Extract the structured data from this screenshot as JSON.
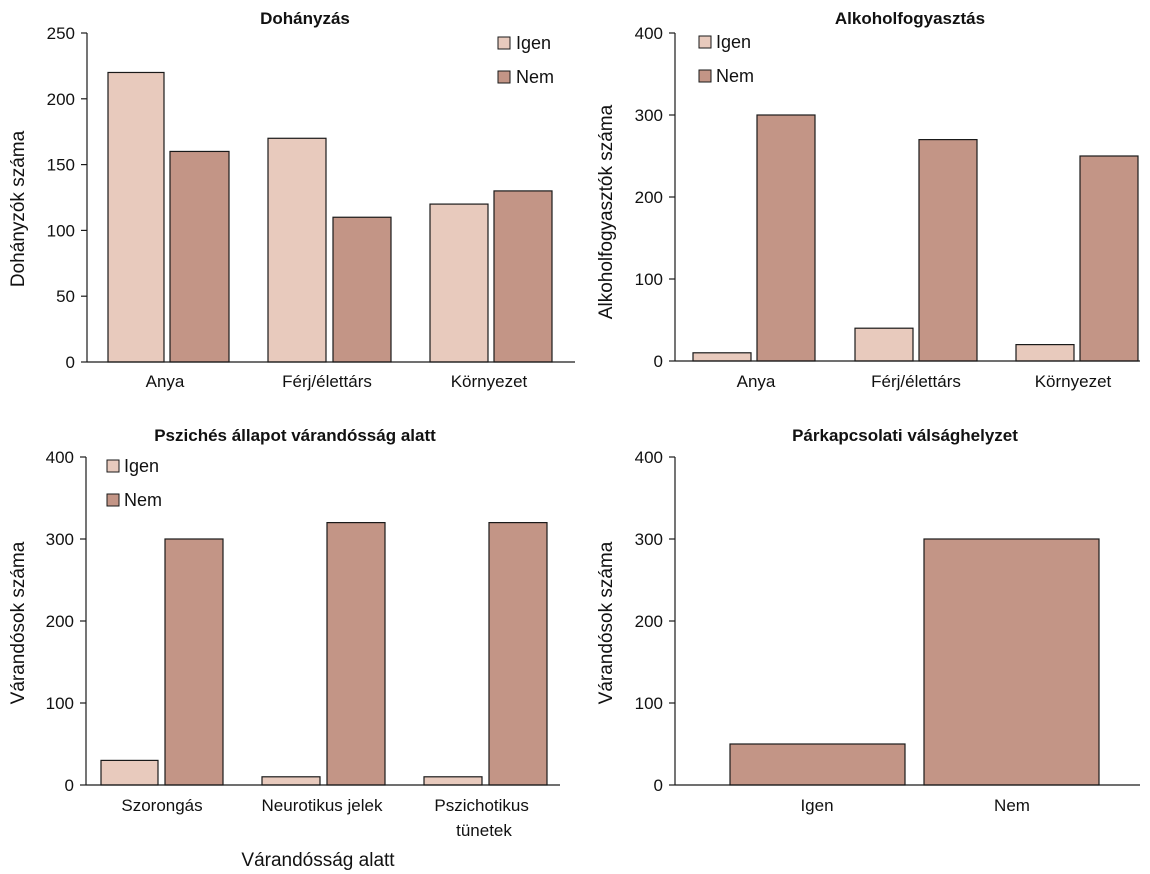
{
  "colors": {
    "igen": "#e8cabd",
    "nem": "#c39586",
    "stroke": "#1a1a1a"
  },
  "chart_data": [
    {
      "type": "bar",
      "title": "Dohányzás",
      "ylabel": "Dohányzók száma",
      "xlabel": "",
      "categories": [
        "Anya",
        "Férj/élettárs",
        "Környezet"
      ],
      "series": [
        {
          "name": "Igen",
          "values": [
            220,
            170,
            120
          ]
        },
        {
          "name": "Nem",
          "values": [
            160,
            110,
            130
          ]
        }
      ],
      "ylim": [
        0,
        250
      ],
      "yticks": [
        0,
        50,
        100,
        150,
        200,
        250
      ],
      "legend": "top-right",
      "grid": false
    },
    {
      "type": "bar",
      "title": "Alkoholfogyasztás",
      "ylabel": "Alkoholfogyasztók száma",
      "xlabel": "",
      "categories": [
        "Anya",
        "Férj/élettárs",
        "Környezet"
      ],
      "series": [
        {
          "name": "Igen",
          "values": [
            10,
            40,
            20
          ]
        },
        {
          "name": "Nem",
          "values": [
            300,
            270,
            250
          ]
        }
      ],
      "ylim": [
        0,
        400
      ],
      "yticks": [
        0,
        100,
        200,
        300,
        400
      ],
      "legend": "top-left",
      "grid": false
    },
    {
      "type": "bar",
      "title": "Pszichés állapot várandósság alatt",
      "ylabel": "Várandósok száma",
      "xlabel": "Várandósság alatt",
      "categories": [
        "Szorongás",
        "Neurotikus jelek",
        "Pszichotikus tünetek"
      ],
      "series": [
        {
          "name": "Igen",
          "values": [
            30,
            10,
            10
          ]
        },
        {
          "name": "Nem",
          "values": [
            300,
            320,
            320
          ]
        }
      ],
      "ylim": [
        0,
        400
      ],
      "yticks": [
        0,
        100,
        200,
        300,
        400
      ],
      "legend": "top-left",
      "grid": false
    },
    {
      "type": "bar",
      "title": "Párkapcsolati válsághelyzet",
      "ylabel": "Várandósok száma",
      "xlabel": "",
      "categories": [
        "Igen",
        "Nem"
      ],
      "values": [
        50,
        300
      ],
      "ylim": [
        0,
        400
      ],
      "yticks": [
        0,
        100,
        200,
        300,
        400
      ],
      "legend": "none",
      "grid": false
    }
  ]
}
